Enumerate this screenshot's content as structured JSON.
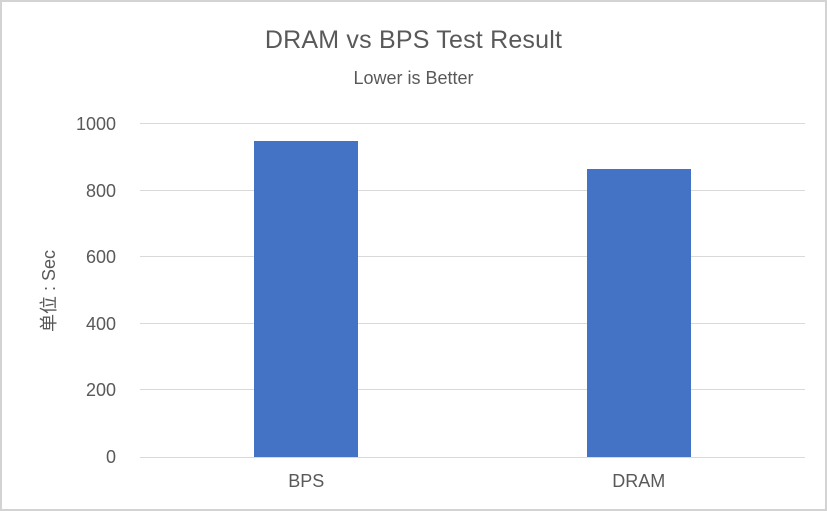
{
  "window": {
    "background": "#ffffff",
    "frame_border_color": "#d3d3d3"
  },
  "chart_data": {
    "type": "bar",
    "title": "DRAM vs BPS Test Result",
    "subtitle": "Lower is Better",
    "categories": [
      "BPS",
      "DRAM"
    ],
    "values": [
      950,
      865
    ],
    "xlabel": "",
    "ylabel": "单位 : Sec",
    "ylim": [
      0,
      1000
    ],
    "yticks": [
      0,
      200,
      400,
      600,
      800,
      1000
    ],
    "grid": true,
    "legend": "none",
    "colors": {
      "bar": "#4472C4",
      "gridline": "#D9D9D9",
      "axis_line": "#D9D9D9",
      "text": "#595959"
    }
  }
}
